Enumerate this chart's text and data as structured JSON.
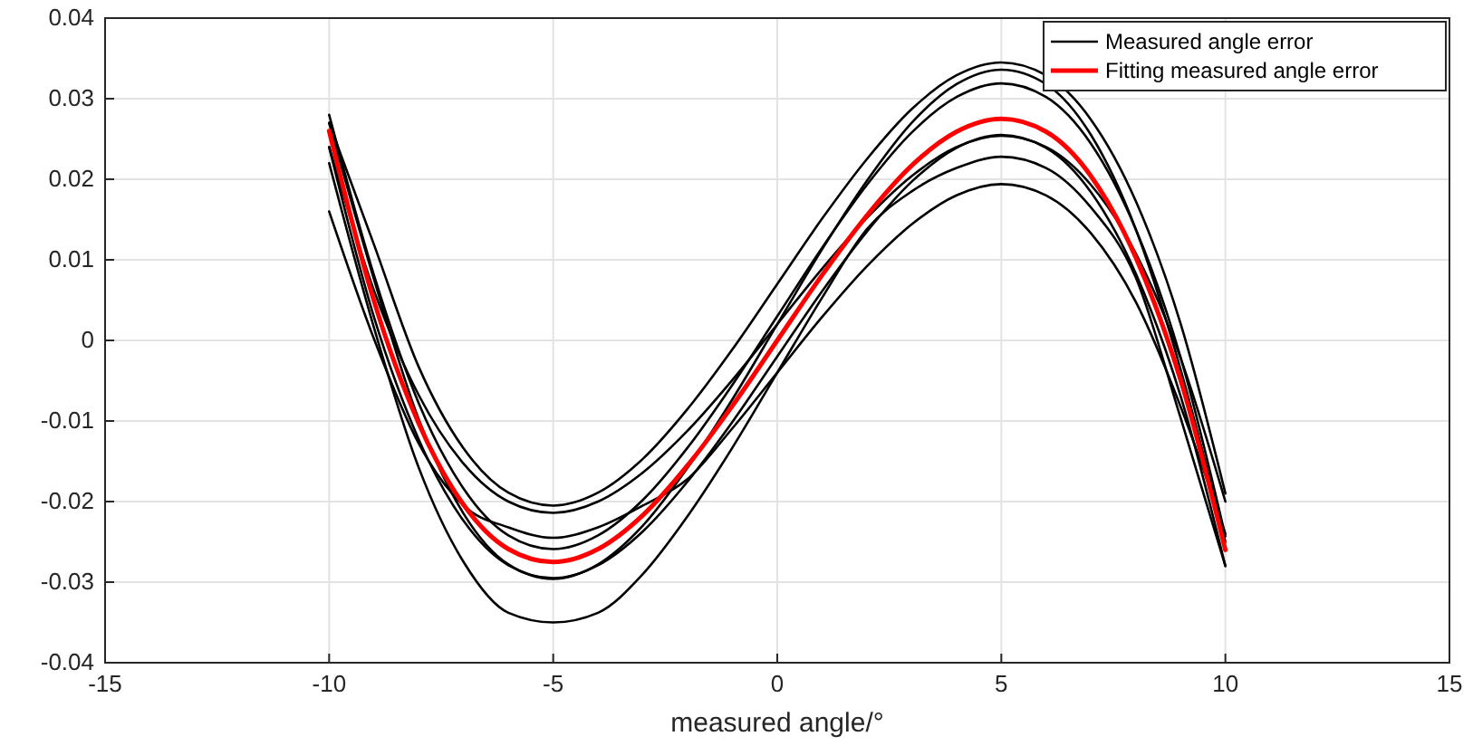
{
  "chart_data": {
    "type": "line",
    "xlabel": "measured angle/°",
    "x": [
      -10,
      -9,
      -8,
      -7,
      -6,
      -5,
      -4,
      -3,
      -2,
      -1,
      0,
      1,
      2,
      3,
      4,
      5,
      6,
      7,
      8,
      9,
      10
    ],
    "xlim": [
      -15,
      15
    ],
    "xticks": [
      -15,
      -10,
      -5,
      0,
      5,
      10,
      15
    ],
    "ylim": [
      -0.04,
      0.04
    ],
    "yticks": [
      -0.04,
      -0.03,
      -0.02,
      -0.01,
      0,
      0.01,
      0.02,
      0.03,
      0.04
    ],
    "grid": true,
    "legend": "top right",
    "marker": "none",
    "line_style": "solid",
    "series": [
      {
        "name": "Measured angle error",
        "color": "#000000",
        "values": [
          0.027,
          0.0119,
          -0.0033,
          -0.0134,
          -0.0189,
          -0.0205,
          -0.0189,
          -0.0147,
          -0.0085,
          -0.0011,
          0.007,
          0.0151,
          0.0225,
          0.0287,
          0.0329,
          0.0345,
          0.0329,
          0.0274,
          0.0173,
          0.0021,
          -0.019
        ]
      },
      {
        "color": "#000000",
        "values": [
          0.027,
          0.0076,
          -0.0098,
          -0.0215,
          -0.0278,
          -0.0296,
          -0.0278,
          -0.023,
          -0.0158,
          -0.0073,
          0.002,
          0.0113,
          0.0198,
          0.027,
          0.0318,
          0.0336,
          0.0318,
          0.0255,
          0.0138,
          -0.0036,
          -0.025
        ]
      },
      {
        "color": "#000000",
        "values": [
          0.022,
          0.0016,
          -0.0158,
          -0.0275,
          -0.0338,
          -0.035,
          -0.0338,
          -0.029,
          -0.0218,
          -0.0133,
          -0.004,
          0.0053,
          0.0138,
          0.0185,
          0.0214,
          0.0228,
          0.0214,
          0.0165,
          0.0078,
          -0.0096,
          -0.028
        ]
      },
      {
        "color": "#000000",
        "values": [
          0.016,
          0.0002,
          -0.0128,
          -0.0205,
          -0.0232,
          -0.0245,
          -0.0232,
          -0.0205,
          -0.0172,
          -0.0109,
          -0.004,
          0.0029,
          0.0092,
          0.0144,
          0.018,
          0.0194,
          0.018,
          0.0133,
          0.0048,
          -0.0082,
          -0.024
        ]
      },
      {
        "color": "#000000",
        "values": [
          0.024,
          0.0062,
          -0.0068,
          -0.0153,
          -0.02,
          -0.0214,
          -0.02,
          -0.0164,
          -0.0112,
          -0.0049,
          0.002,
          0.0089,
          0.0152,
          0.0204,
          0.024,
          0.0254,
          0.024,
          0.0193,
          0.0108,
          -0.0022,
          -0.02
        ]
      },
      {
        "color": "#000000",
        "values": [
          0.024,
          0.0029,
          -0.0123,
          -0.0224,
          -0.0279,
          -0.0295,
          -0.0279,
          -0.0237,
          -0.0175,
          -0.0101,
          -0.002,
          0.0061,
          0.0135,
          0.0197,
          0.0239,
          0.0255,
          0.0239,
          0.0184,
          0.0083,
          -0.0069,
          -0.028
        ]
      },
      {
        "color": "#000000",
        "values": [
          0.028,
          0.0081,
          -0.0078,
          -0.0184,
          -0.0242,
          -0.0259,
          -0.0242,
          -0.0198,
          -0.0133,
          -0.0055,
          0.003,
          0.0115,
          0.0193,
          0.0258,
          0.0302,
          0.0319,
          0.0302,
          0.0244,
          0.0138,
          -0.0021,
          -0.0243
        ]
      },
      {
        "name": "Fitting measured angle error",
        "color": "#ff0000",
        "values": [
          0.026,
          0.0049,
          -0.0103,
          -0.0204,
          -0.0259,
          -0.0275,
          -0.0259,
          -0.0217,
          -0.0155,
          -0.0081,
          0,
          0.0081,
          0.0155,
          0.0217,
          0.0259,
          0.0275,
          0.0259,
          0.0204,
          0.0103,
          -0.0049,
          -0.026
        ]
      }
    ]
  }
}
